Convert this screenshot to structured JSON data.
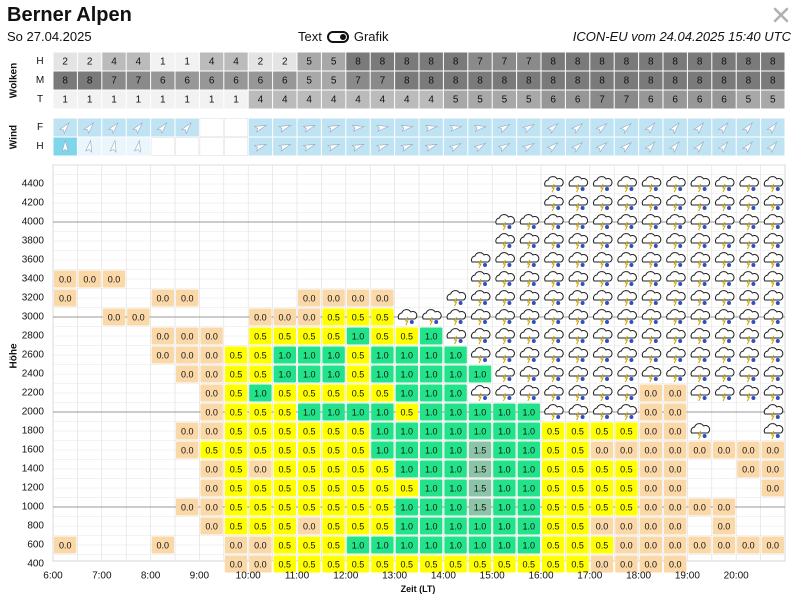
{
  "header": {
    "title": "Berner Alpen",
    "date": "So 27.04.2025",
    "toggle_text": "Text",
    "toggle_grafik": "Grafik",
    "model_run": "ICON-EU vom 24.04.2025 15:40 UTC"
  },
  "chart_data": {
    "type": "heatmap",
    "times": [
      "6:00",
      "6:30",
      "7:00",
      "7:30",
      "8:00",
      "8:30",
      "9:00",
      "9:30",
      "10:00",
      "10:30",
      "11:00",
      "11:30",
      "12:00",
      "12:30",
      "13:00",
      "13:30",
      "14:00",
      "14:30",
      "15:00",
      "15:30",
      "16:00",
      "16:30",
      "17:00",
      "17:30",
      "18:00",
      "18:30",
      "19:00",
      "19:30",
      "20:00",
      "20:30"
    ],
    "x_ticks": [
      "6:00",
      "7:00",
      "8:00",
      "9:00",
      "10:00",
      "11:00",
      "12:00",
      "13:00",
      "14:00",
      "15:00",
      "16:00",
      "17:00",
      "18:00",
      "19:00",
      "20:00"
    ],
    "xlabel": "Zeit (LT)",
    "ylabel": "Höhe",
    "y_ticks": [
      4400,
      4200,
      4000,
      3800,
      3600,
      3400,
      3200,
      3000,
      2800,
      2600,
      2400,
      2200,
      2000,
      1800,
      1600,
      1400,
      1200,
      1000,
      800,
      600,
      400
    ],
    "clouds": {
      "section_label": "Wolken",
      "rows": [
        {
          "label": "H",
          "values": [
            2,
            2,
            4,
            4,
            1,
            1,
            4,
            4,
            2,
            2,
            5,
            5,
            8,
            8,
            8,
            8,
            8,
            7,
            7,
            7,
            8,
            8,
            8,
            8,
            8,
            8,
            8,
            8,
            8,
            8
          ]
        },
        {
          "label": "M",
          "values": [
            8,
            8,
            7,
            7,
            6,
            6,
            6,
            6,
            6,
            6,
            5,
            5,
            7,
            7,
            8,
            8,
            8,
            8,
            8,
            8,
            8,
            8,
            8,
            8,
            8,
            8,
            8,
            8,
            8,
            8
          ]
        },
        {
          "label": "T",
          "values": [
            1,
            1,
            1,
            1,
            1,
            1,
            1,
            1,
            4,
            4,
            4,
            4,
            4,
            4,
            4,
            4,
            5,
            5,
            5,
            5,
            6,
            6,
            7,
            7,
            6,
            6,
            6,
            6,
            5,
            5
          ]
        }
      ]
    },
    "wind": {
      "section_label": "Wind",
      "rows": [
        {
          "label": "F",
          "dirs": [
            40,
            40,
            40,
            40,
            40,
            40,
            null,
            null,
            70,
            70,
            70,
            70,
            80,
            80,
            80,
            80,
            80,
            80,
            60,
            60,
            50,
            50,
            50,
            50,
            40,
            40,
            40,
            40,
            40,
            40
          ]
        },
        {
          "label": "H",
          "dirs": [
            0,
            10,
            10,
            10,
            null,
            null,
            null,
            null,
            70,
            70,
            70,
            70,
            70,
            70,
            70,
            70,
            60,
            60,
            60,
            60,
            50,
            50,
            50,
            50,
            40,
            40,
            40,
            40,
            40,
            40
          ]
        }
      ]
    },
    "thermals": {
      "4400": [
        "",
        "",
        "",
        "",
        "",
        "",
        "",
        "",
        "",
        "",
        "",
        "",
        "",
        "",
        "",
        "",
        "",
        "",
        "",
        "",
        "icon",
        "icon",
        "icon",
        "icon",
        "icon",
        "icon",
        "icon",
        "icon",
        "icon",
        "icon"
      ],
      "4200": [
        "",
        "",
        "",
        "",
        "",
        "",
        "",
        "",
        "",
        "",
        "",
        "",
        "",
        "",
        "",
        "",
        "",
        "",
        "",
        "",
        "icon",
        "icon",
        "icon",
        "icon",
        "icon",
        "icon",
        "icon",
        "icon",
        "icon",
        "icon"
      ],
      "4000": [
        "",
        "",
        "",
        "",
        "",
        "",
        "",
        "",
        "",
        "",
        "",
        "",
        "",
        "",
        "",
        "",
        "",
        "",
        "icon",
        "icon",
        "icon",
        "icon",
        "icon",
        "icon",
        "icon",
        "icon",
        "icon",
        "icon",
        "icon",
        "icon"
      ],
      "3800": [
        "",
        "",
        "",
        "",
        "",
        "",
        "",
        "",
        "",
        "",
        "",
        "",
        "",
        "",
        "",
        "",
        "",
        "",
        "icon",
        "icon",
        "icon",
        "icon",
        "icon",
        "icon",
        "icon",
        "icon",
        "icon",
        "icon",
        "icon",
        "icon"
      ],
      "3600": [
        "",
        "",
        "",
        "",
        "",
        "",
        "",
        "",
        "",
        "",
        "",
        "",
        "",
        "",
        "",
        "",
        "",
        "icon",
        "icon",
        "icon",
        "icon",
        "icon",
        "icon",
        "icon",
        "icon",
        "icon",
        "icon",
        "icon",
        "icon",
        "icon"
      ],
      "3400": [
        "0.0",
        "0.0",
        "0.0",
        "",
        "",
        "",
        "",
        "",
        "",
        "",
        "",
        "",
        "",
        "",
        "",
        "",
        "",
        "icon",
        "icon",
        "icon",
        "icon",
        "icon",
        "icon",
        "icon",
        "icon",
        "icon",
        "icon",
        "icon",
        "icon",
        "icon"
      ],
      "3200": [
        "0.0",
        "",
        "",
        "",
        "0.0",
        "0.0",
        "",
        "",
        "",
        "",
        "0.0",
        "0.0",
        "0.0",
        "0.0",
        "",
        "",
        "icon",
        "icon",
        "icon",
        "icon",
        "icon",
        "icon",
        "icon",
        "icon",
        "icon",
        "icon",
        "icon",
        "icon",
        "icon",
        "icon"
      ],
      "3000": [
        "",
        "",
        "0.0",
        "0.0",
        "",
        "",
        "",
        "",
        "0.0",
        "0.0",
        "0.0",
        "0.5",
        "0.5",
        "0.5",
        "icon",
        "icon",
        "icon",
        "icon",
        "icon",
        "icon",
        "icon",
        "icon",
        "icon",
        "icon",
        "icon",
        "icon",
        "icon",
        "icon",
        "icon",
        "icon"
      ],
      "2800": [
        "",
        "",
        "",
        "",
        "0.0",
        "0.0",
        "0.0",
        "",
        "0.5",
        "0.5",
        "0.5",
        "0.5",
        "1.0",
        "0.5",
        "0.5",
        "1.0",
        "icon",
        "icon",
        "icon",
        "icon",
        "icon",
        "icon",
        "icon",
        "icon",
        "icon",
        "icon",
        "icon",
        "icon",
        "icon",
        "icon"
      ],
      "2600": [
        "",
        "",
        "",
        "",
        "0.0",
        "0.0",
        "0.0",
        "0.5",
        "0.5",
        "1.0",
        "1.0",
        "1.0",
        "0.5",
        "1.0",
        "1.0",
        "1.0",
        "1.0",
        "icon",
        "icon",
        "icon",
        "icon",
        "icon",
        "icon",
        "icon",
        "icon",
        "icon",
        "icon",
        "icon",
        "icon",
        "icon"
      ],
      "2400": [
        "",
        "",
        "",
        "",
        "",
        "0.0",
        "0.0",
        "0.5",
        "0.5",
        "1.0",
        "1.0",
        "1.0",
        "0.5",
        "1.0",
        "1.0",
        "1.0",
        "1.0",
        "1.0",
        "icon",
        "icon",
        "icon",
        "icon",
        "icon",
        "icon",
        "icon",
        "icon",
        "icon",
        "icon",
        "icon",
        "icon"
      ],
      "2200": [
        "",
        "",
        "",
        "",
        "",
        "",
        "0.0",
        "0.5",
        "1.0",
        "0.5",
        "0.5",
        "0.5",
        "0.5",
        "0.5",
        "1.0",
        "1.0",
        "1.0",
        "icon",
        "icon",
        "icon",
        "icon",
        "icon",
        "icon",
        "icon",
        "0.0",
        "0.0",
        "icon",
        "icon",
        "icon",
        "icon"
      ],
      "2000": [
        "",
        "",
        "",
        "",
        "",
        "",
        "0.0",
        "0.5",
        "0.5",
        "0.5",
        "1.0",
        "1.0",
        "1.0",
        "1.0",
        "0.5",
        "1.0",
        "1.0",
        "1.0",
        "1.0",
        "1.0",
        "icon",
        "icon",
        "icon",
        "icon",
        "0.0",
        "0.0",
        "",
        "",
        "",
        "icon"
      ],
      "1800": [
        "",
        "",
        "",
        "",
        "",
        "0.0",
        "0.0",
        "0.5",
        "0.5",
        "0.5",
        "0.5",
        "0.5",
        "0.5",
        "1.0",
        "1.0",
        "1.0",
        "1.0",
        "1.0",
        "1.0",
        "1.0",
        "0.5",
        "0.5",
        "0.5",
        "0.5",
        "0.0",
        "0.0",
        "icon",
        "",
        "",
        "icon"
      ],
      "1600": [
        "",
        "",
        "",
        "",
        "",
        "0.0",
        "0.5",
        "0.5",
        "0.5",
        "0.5",
        "0.5",
        "0.5",
        "0.5",
        "1.0",
        "1.0",
        "1.0",
        "1.0",
        "1.5",
        "1.0",
        "1.0",
        "0.5",
        "0.5",
        "0.0",
        "0.0",
        "0.0",
        "0.0",
        "0.0",
        "0.0",
        "0.0",
        "0.0"
      ],
      "1400": [
        "",
        "",
        "",
        "",
        "",
        "",
        "0.0",
        "0.5",
        "0.0",
        "0.5",
        "0.5",
        "0.5",
        "0.5",
        "0.5",
        "1.0",
        "1.0",
        "1.0",
        "1.5",
        "1.0",
        "1.0",
        "0.5",
        "0.5",
        "0.5",
        "0.5",
        "0.0",
        "0.0",
        "",
        "",
        "0.0",
        "0.0"
      ],
      "1200": [
        "",
        "",
        "",
        "",
        "",
        "",
        "0.0",
        "0.5",
        "0.5",
        "0.5",
        "0.5",
        "0.5",
        "0.5",
        "0.5",
        "0.5",
        "1.0",
        "1.0",
        "1.5",
        "1.0",
        "1.0",
        "0.5",
        "0.5",
        "0.5",
        "0.5",
        "0.0",
        "0.0",
        "",
        "",
        "",
        "0.0"
      ],
      "1000": [
        "",
        "",
        "",
        "",
        "",
        "0.0",
        "0.0",
        "0.5",
        "0.5",
        "0.5",
        "0.5",
        "0.5",
        "0.5",
        "0.5",
        "1.0",
        "1.0",
        "1.0",
        "1.5",
        "1.0",
        "1.0",
        "0.5",
        "0.5",
        "0.5",
        "0.5",
        "0.0",
        "0.0",
        "0.0",
        "0.0",
        "",
        ""
      ],
      "800": [
        "",
        "",
        "",
        "",
        "",
        "",
        "0.0",
        "0.5",
        "0.5",
        "0.5",
        "0.0",
        "0.5",
        "0.5",
        "0.5",
        "1.0",
        "1.0",
        "1.0",
        "1.0",
        "1.0",
        "1.0",
        "0.5",
        "0.5",
        "0.0",
        "0.0",
        "0.0",
        "0.0",
        "",
        "0.0",
        "",
        ""
      ],
      "600": [
        "0.0",
        "",
        "",
        "",
        "0.0",
        "",
        "",
        "0.0",
        "0.0",
        "0.5",
        "0.5",
        "0.5",
        "1.0",
        "1.0",
        "1.0",
        "1.0",
        "1.0",
        "1.0",
        "1.0",
        "1.0",
        "0.5",
        "0.5",
        "0.5",
        "0.0",
        "0.0",
        "0.0",
        "0.0",
        "0.0",
        "0.0",
        "0.0"
      ],
      "400": [
        "",
        "",
        "",
        "",
        "",
        "",
        "",
        "0.0",
        "0.0",
        "0.5",
        "0.5",
        "0.5",
        "0.5",
        "0.5",
        "0.5",
        "0.5",
        "0.5",
        "0.5",
        "0.5",
        "0.5",
        "0.5",
        "0.5",
        "0.0",
        "0.0",
        "0.0",
        "0.0",
        "",
        "",
        "",
        ""
      ]
    }
  }
}
